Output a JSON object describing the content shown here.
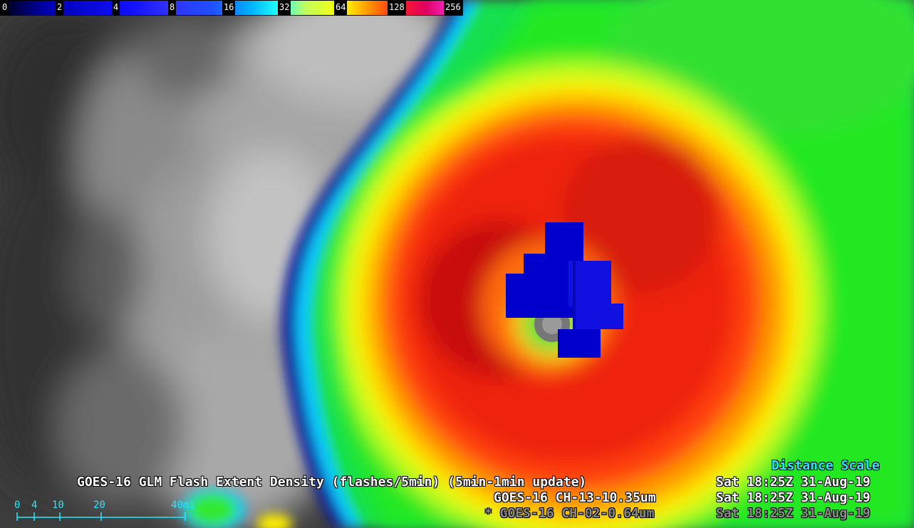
{
  "colorbar": {
    "ticks": [
      "0",
      "2",
      "4",
      "8",
      "16",
      "32",
      "64",
      "128",
      "256"
    ]
  },
  "legend": {
    "distance_scale_title": "Distance Scale",
    "line1_product": "GOES-16 GLM Flash Extent Density (flashes/5min) (5min-1min update)",
    "line1_time": "Sat 18:25Z 31-Aug-19",
    "line2_product": "GOES-16 CH-13-10.35um",
    "line2_time": "Sat 18:25Z 31-Aug-19",
    "line3_product": "* GOES-16 CH-02-0.64um",
    "line3_time": "Sat 18:25Z 31-Aug-19"
  },
  "distance_scale": {
    "labels": [
      "0",
      "4",
      "10",
      "20",
      "40mi"
    ]
  },
  "colors": {
    "legend_white": "#ffffff",
    "legend_gray": "#8a8a8a",
    "scale_cyan": "#22e8ff"
  }
}
